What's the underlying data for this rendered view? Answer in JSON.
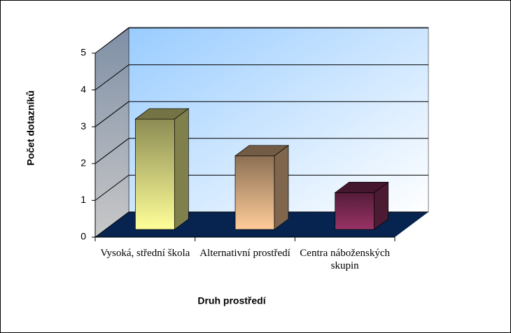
{
  "chart_data": {
    "type": "bar3d",
    "categories": [
      "Vysoká, střední škola",
      "Alternativní prostředí",
      "Centra náboženských skupin"
    ],
    "values": [
      3,
      2,
      1
    ],
    "colors": [
      "#ffff99",
      "#ffcc99",
      "#993366"
    ],
    "ylim": [
      0,
      5
    ],
    "yticks": [
      0,
      1,
      2,
      3,
      4,
      5
    ],
    "grid": true,
    "ylabel": "Počet dotazníků",
    "xlabel": "Druh prostředí"
  }
}
